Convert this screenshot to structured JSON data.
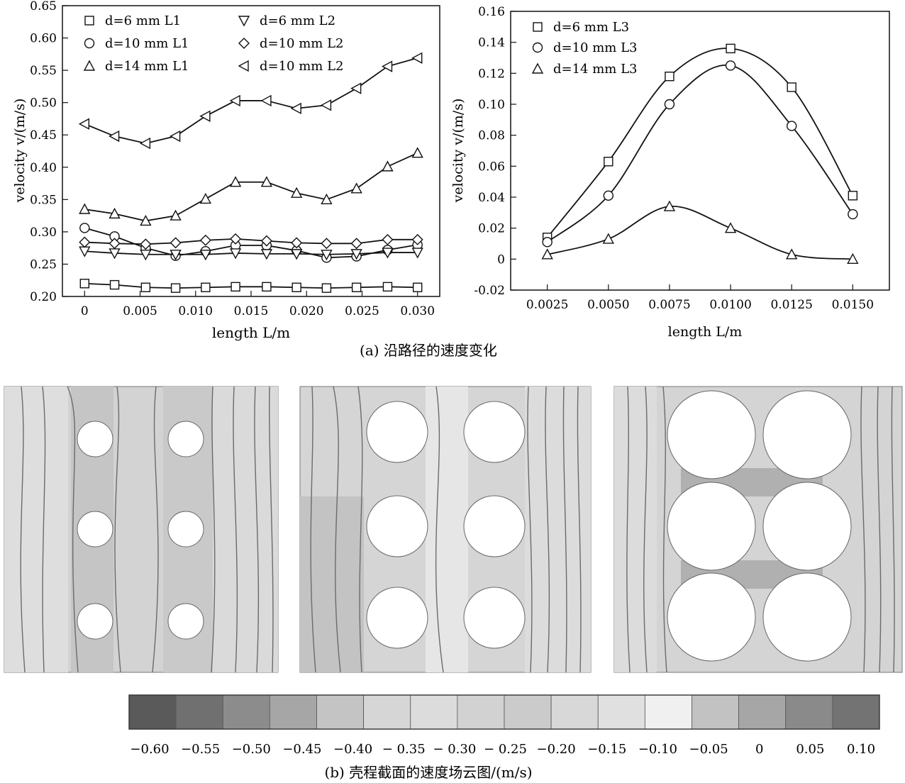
{
  "figure": {
    "caption_a": "(a) 沿路径的速度变化",
    "caption_b": "(b) 壳程截面的速度场云图/(m/s)"
  },
  "chart_data": [
    {
      "type": "line",
      "panel": "left",
      "xlabel": "length  L/m",
      "ylabel": "velocity v/(m/s)",
      "xlim": [
        -0.002,
        0.032
      ],
      "ylim": [
        0.2,
        0.65
      ],
      "xticks": [
        "0",
        "0.005",
        "0.010",
        "0.015",
        "0.020",
        "0.025",
        "0.030"
      ],
      "yticks": [
        "0.20",
        "0.25",
        "0.30",
        "0.35",
        "0.40",
        "0.45",
        "0.50",
        "0.55",
        "0.60",
        "0.65"
      ],
      "legend_position": "top",
      "x": [
        0,
        0.0027,
        0.0055,
        0.0082,
        0.0109,
        0.0136,
        0.0164,
        0.0191,
        0.0218,
        0.0245,
        0.0273,
        0.03
      ],
      "series": [
        {
          "name": "d=6 mm   L1",
          "marker": "square",
          "values": [
            0.22,
            0.218,
            0.214,
            0.213,
            0.214,
            0.215,
            0.215,
            0.214,
            0.213,
            0.214,
            0.215,
            0.214
          ]
        },
        {
          "name": "d=10 mm L1",
          "marker": "circle",
          "values": [
            0.306,
            0.293,
            0.275,
            0.263,
            0.27,
            0.279,
            0.279,
            0.271,
            0.26,
            0.262,
            0.272,
            0.28
          ]
        },
        {
          "name": "d=14 mm L1",
          "marker": "triangle-up",
          "values": [
            0.335,
            0.328,
            0.317,
            0.325,
            0.351,
            0.377,
            0.377,
            0.36,
            0.35,
            0.367,
            0.401,
            0.422
          ]
        },
        {
          "name": "d=6 mm   L2",
          "marker": "triangle-down",
          "values": [
            0.27,
            0.267,
            0.265,
            0.265,
            0.265,
            0.267,
            0.266,
            0.266,
            0.265,
            0.266,
            0.268,
            0.268
          ]
        },
        {
          "name": "d=10 mm   L2",
          "marker": "diamond",
          "values": [
            0.284,
            0.282,
            0.281,
            0.283,
            0.287,
            0.289,
            0.286,
            0.283,
            0.282,
            0.282,
            0.288,
            0.288
          ]
        },
        {
          "name": "d=10 mm   L2",
          "marker": "triangle-left",
          "values": [
            0.467,
            0.448,
            0.437,
            0.448,
            0.479,
            0.503,
            0.503,
            0.491,
            0.496,
            0.522,
            0.556,
            0.569
          ]
        }
      ]
    },
    {
      "type": "line",
      "panel": "right",
      "xlabel": "length  L/m",
      "ylabel": "velocity v/(m/s)",
      "xlim": [
        0.001,
        0.0165
      ],
      "ylim": [
        -0.02,
        0.16
      ],
      "xticks": [
        "0.0025",
        "0.0050",
        "0.0075",
        "0.0100",
        "0.0125",
        "0.0150"
      ],
      "yticks": [
        "-0.02",
        "0",
        "0.02",
        "0.04",
        "0.06",
        "0.08",
        "0.10",
        "0.12",
        "0.14",
        "0.16"
      ],
      "legend_position": "top-left",
      "x": [
        0.0025,
        0.005,
        0.0075,
        0.01,
        0.0125,
        0.015
      ],
      "series": [
        {
          "name": "d=6 mm   L3",
          "marker": "square",
          "values": [
            0.014,
            0.063,
            0.118,
            0.136,
            0.111,
            0.041
          ]
        },
        {
          "name": "d=10 mm  L3",
          "marker": "circle",
          "values": [
            0.011,
            0.041,
            0.1,
            0.125,
            0.086,
            0.029
          ]
        },
        {
          "name": "d=14 mm  L3",
          "marker": "triangle-up",
          "values": [
            0.003,
            0.013,
            0.034,
            0.02,
            0.003,
            0.0
          ]
        }
      ]
    }
  ],
  "colorbar": {
    "labels": [
      "−0.60",
      "−0.55",
      "−0.50",
      "−0.45",
      "−0.40",
      "− 0.35",
      "− 0.30",
      "− 0.25",
      "−0.20",
      "−0.15",
      "−0.10",
      "−0.05",
      "0",
      "0.05",
      "0.10"
    ],
    "colors": [
      "#5a5a5a",
      "#707070",
      "#8c8c8c",
      "#a6a6a6",
      "#c4c4c4",
      "#d6d6d6",
      "#dcdcdc",
      "#d2d2d2",
      "#cbcbcb",
      "#d8d8d8",
      "#e0e0e0",
      "#f0f0f0",
      "#c2c2c2",
      "#a6a6a6",
      "#8a8a8a",
      "#737373"
    ]
  }
}
